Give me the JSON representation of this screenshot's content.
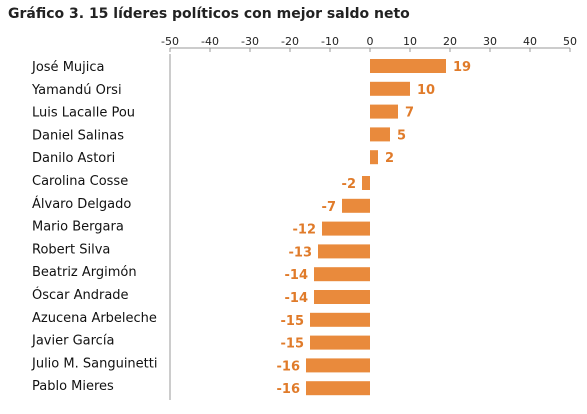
{
  "chart_data": {
    "type": "bar",
    "orientation": "horizontal",
    "title": "Gráfico 3. 15 líderes políticos con mejor saldo neto",
    "xlabel": "",
    "ylabel": "",
    "xlim": [
      -50,
      50
    ],
    "x_ticks": [
      -50,
      -40,
      -30,
      -20,
      -10,
      0,
      10,
      20,
      30,
      40,
      50
    ],
    "axis_position": "top",
    "grid": false,
    "legend": "none",
    "bar_color": "#e98a3c",
    "label_color": "#e07b2a",
    "categories": [
      "José Mujica",
      "Yamandú Orsi",
      "Luis Lacalle Pou",
      "Daniel Salinas",
      "Danilo Astori",
      "Carolina Cosse",
      "Álvaro Delgado",
      "Mario Bergara",
      "Robert Silva",
      "Beatriz Argimón",
      "Óscar Andrade",
      "Azucena Arbeleche",
      "Javier García",
      "Julio M. Sanguinetti",
      "Pablo Mieres"
    ],
    "values": [
      19,
      10,
      7,
      5,
      2,
      -2,
      -7,
      -12,
      -13,
      -14,
      -14,
      -15,
      -15,
      -16,
      -16
    ]
  }
}
